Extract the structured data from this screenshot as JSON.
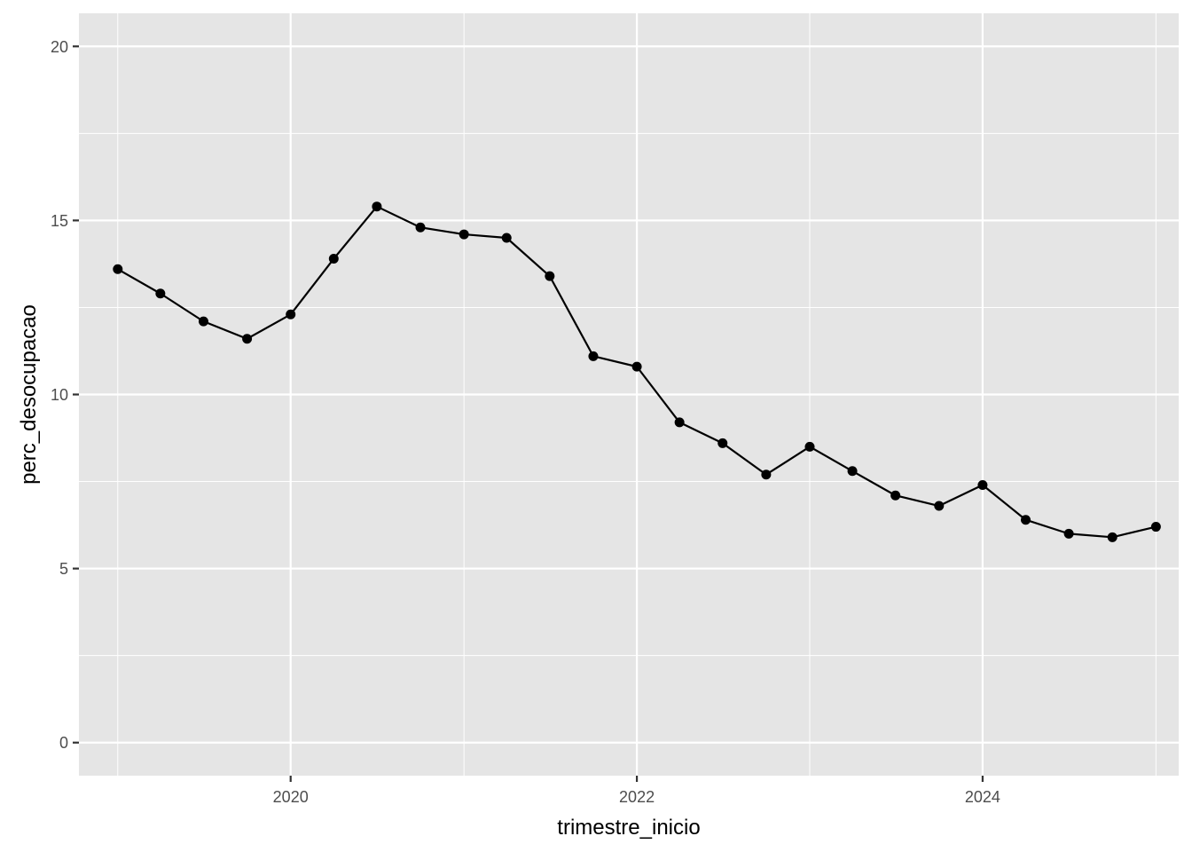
{
  "chart_data": {
    "type": "line",
    "xlabel": "trimestre_inicio",
    "ylabel": "perc_desocupacao",
    "xlim": [
      "2018-10-11",
      "2025-02-18"
    ],
    "ylim": [
      -0.95,
      20.95
    ],
    "x_ticks": [
      {
        "date": "2020-01-01",
        "label": "2020"
      },
      {
        "date": "2022-01-01",
        "label": "2022"
      },
      {
        "date": "2024-01-01",
        "label": "2024"
      }
    ],
    "x_minor_ticks": [
      "2019-01-01",
      "2021-01-01",
      "2023-01-01",
      "2025-01-01"
    ],
    "y_ticks": [
      0,
      5,
      10,
      15,
      20
    ],
    "y_minor_ticks": [
      2.5,
      7.5,
      12.5,
      17.5
    ],
    "grid": true,
    "colors": {
      "panel": "#e5e5e5",
      "grid": "#ffffff",
      "series": "#000000",
      "tick_text": "#4d4d4d",
      "tick_mark": "#333333"
    },
    "series": [
      {
        "x": [
          "2019-01-01",
          "2019-04-01",
          "2019-07-01",
          "2019-10-01",
          "2020-01-01",
          "2020-04-01",
          "2020-07-01",
          "2020-10-01",
          "2021-01-01",
          "2021-04-01",
          "2021-07-01",
          "2021-10-01",
          "2022-01-01",
          "2022-04-01",
          "2022-07-01",
          "2022-10-01",
          "2023-01-01",
          "2023-04-01",
          "2023-07-01",
          "2023-10-01",
          "2024-01-01",
          "2024-04-01",
          "2024-07-01",
          "2024-10-01",
          "2025-01-01"
        ],
        "y": [
          13.6,
          12.9,
          12.1,
          11.6,
          12.3,
          13.9,
          15.4,
          14.8,
          14.6,
          14.5,
          13.4,
          11.1,
          10.8,
          9.2,
          8.6,
          7.7,
          8.5,
          7.8,
          7.1,
          6.8,
          7.4,
          6.4,
          6.0,
          5.9,
          6.2
        ]
      }
    ]
  }
}
